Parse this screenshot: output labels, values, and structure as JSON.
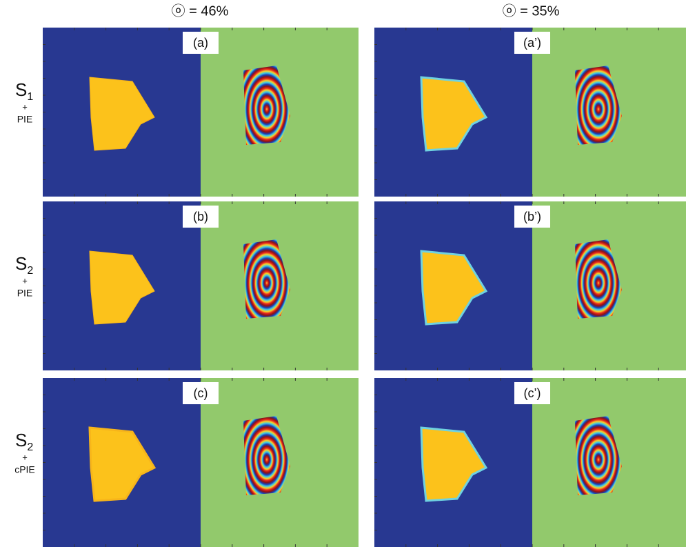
{
  "column_headers": [
    "ⓞ = 46%",
    "ⓞ = 35%"
  ],
  "rows": [
    {
      "symbol": "S",
      "subscript": "1",
      "plus": "+",
      "method": "PIE",
      "panels": [
        "(a)",
        "(a’)"
      ]
    },
    {
      "symbol": "S",
      "subscript": "2",
      "plus": "+",
      "method": "PIE",
      "panels": [
        "(b)",
        "(b’)"
      ]
    },
    {
      "symbol": "S",
      "subscript": "2",
      "plus": "+",
      "method": "cPIE",
      "panels": [
        "(c)",
        "(c’)"
      ]
    }
  ]
}
